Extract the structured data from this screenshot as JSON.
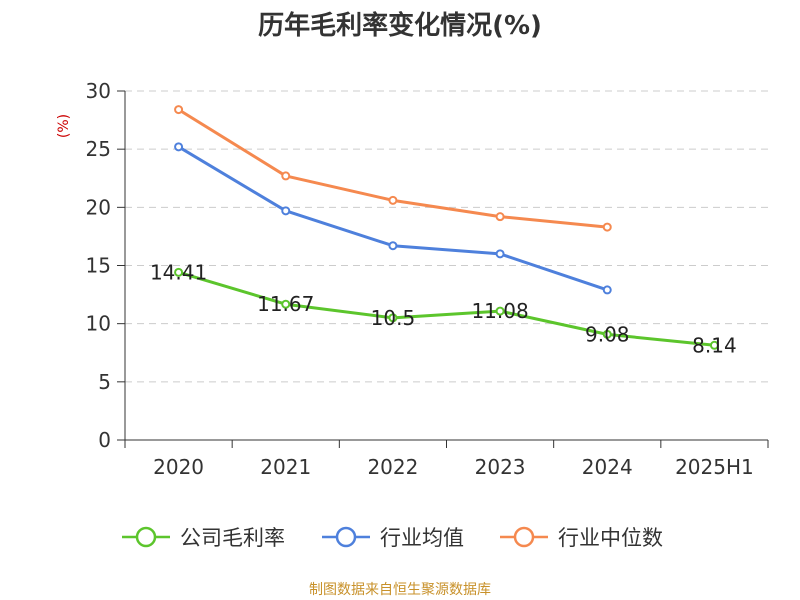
{
  "colors": {
    "gross_margin": "#5cc52c",
    "industry_avg": "#4e80dc",
    "industry_median": "#f5894f",
    "ylabel": "#cc0000",
    "source": "#c8912a",
    "grid": "#cccccc",
    "axis": "#333333"
  },
  "chart_data": {
    "type": "line",
    "title": "历年毛利率变化情况(%)",
    "ylabel": "(%)",
    "xlabel": "",
    "categories": [
      "2020",
      "2021",
      "2022",
      "2023",
      "2024",
      "2025H1"
    ],
    "ylim": [
      0,
      30
    ],
    "yticks": [
      0,
      5,
      10,
      15,
      20,
      25,
      30
    ],
    "grid": "horizontal-dashed",
    "legend_position": "bottom",
    "series": [
      {
        "name": "公司毛利率",
        "color_key": "gross_margin",
        "values": [
          14.41,
          11.67,
          10.5,
          11.08,
          9.08,
          8.14
        ],
        "labels": [
          "14.41",
          "11.67",
          "10.5",
          "11.08",
          "9.08",
          "8.14"
        ]
      },
      {
        "name": "行业均值",
        "color_key": "industry_avg",
        "values": [
          25.2,
          19.7,
          16.7,
          16.0,
          12.9,
          null
        ]
      },
      {
        "name": "行业中位数",
        "color_key": "industry_median",
        "values": [
          28.4,
          22.7,
          20.6,
          19.2,
          18.3,
          null
        ]
      }
    ]
  },
  "footer": {
    "source_text": "制图数据来自恒生聚源数据库"
  }
}
